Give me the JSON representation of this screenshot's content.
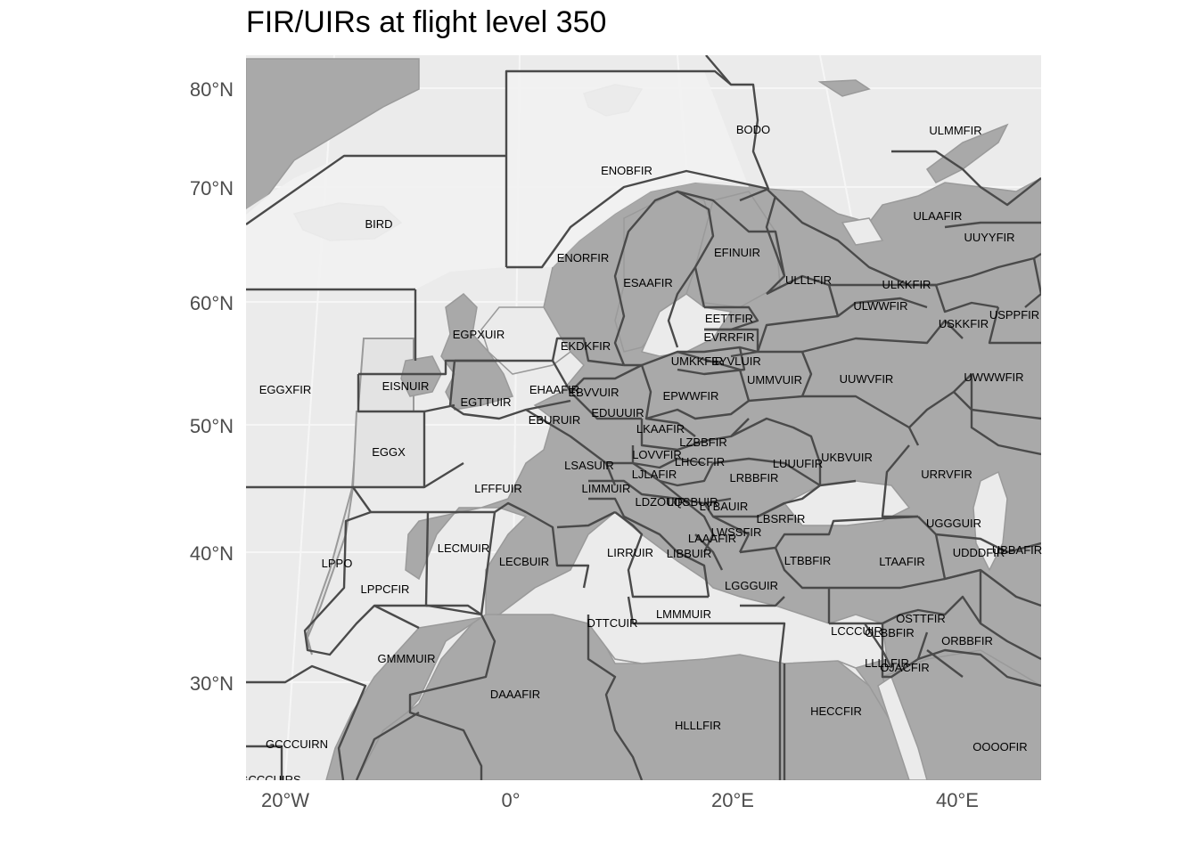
{
  "title": "FIR/UIRs at flight level 350",
  "colors": {
    "panel": "#ebebeb",
    "land": "#a9a9a9",
    "ocean_region": "#e3e3e3",
    "fir_fill": "#f2f2f2",
    "boundary": "#4a4a4a",
    "grid": "#f7f7f7",
    "axis_text": "#4d4d4d"
  },
  "axes": {
    "lat_labels": [
      "80°N",
      "70°N",
      "60°N",
      "50°N",
      "40°N",
      "30°N"
    ],
    "lon_labels": [
      "20°W",
      "0°",
      "20°E",
      "40°E"
    ]
  },
  "fir_labels": [
    "BODO",
    "ULMMFIR",
    "ENOBFIR",
    "BIRD",
    "ULAAFIR",
    "UUYYFIR",
    "EFINUIR",
    "ENORFIR",
    "ESAAFIR",
    "ULLLFIR",
    "ULKKFIR",
    "EETTFIR",
    "ULWWFIR",
    "USPPFIR",
    "USKKFIR",
    "EGPXUIR",
    "EVRRFIR",
    "EKDKFIR",
    "UMKKFIR",
    "EYVLUIR",
    "EGGXFIR",
    "EISNUIR",
    "UMMVUIR",
    "UUWVFIR",
    "UWWWFIR",
    "EHAAFIR",
    "EBVVUIR",
    "EPWWFIR",
    "EGTTUIR",
    "EDUUUIR",
    "EBURUIR",
    "LKAAFIR",
    "LZBBFIR",
    "EGGX",
    "LOVVFIR",
    "UKBVUIR",
    "LHCCFIR",
    "LUUUFIR",
    "LSASUIR",
    "LJLAFIR",
    "LRBBFIR",
    "URRVFIR",
    "LFFFUIR",
    "LIMMUIR",
    "LDZOUIR",
    "LQSBUIR",
    "LYBAUIR",
    "LBSRFIR",
    "UGGGUIR",
    "LWSSFIR",
    "LAAAFIR",
    "LECMUIR",
    "UDDDFIR",
    "UBBAFIR",
    "LIRRUIR",
    "LIBBUIR",
    "LTBBFIR",
    "LTAAFIR",
    "LPPO",
    "LECBUIR",
    "LGGGUIR",
    "LPPCFIR",
    "LMMMUIR",
    "OSTTFIR",
    "DTTCUIR",
    "LCCCUIR",
    "OLBBFIR",
    "ORBBFIR",
    "GMMMUIR",
    "LLLLFIR",
    "OJACFIR",
    "DAAAFIR",
    "HECCFIR",
    "HLLLFIR",
    "OOOOFIR",
    "GCCCUIRN",
    "GCCCUIRS"
  ]
}
